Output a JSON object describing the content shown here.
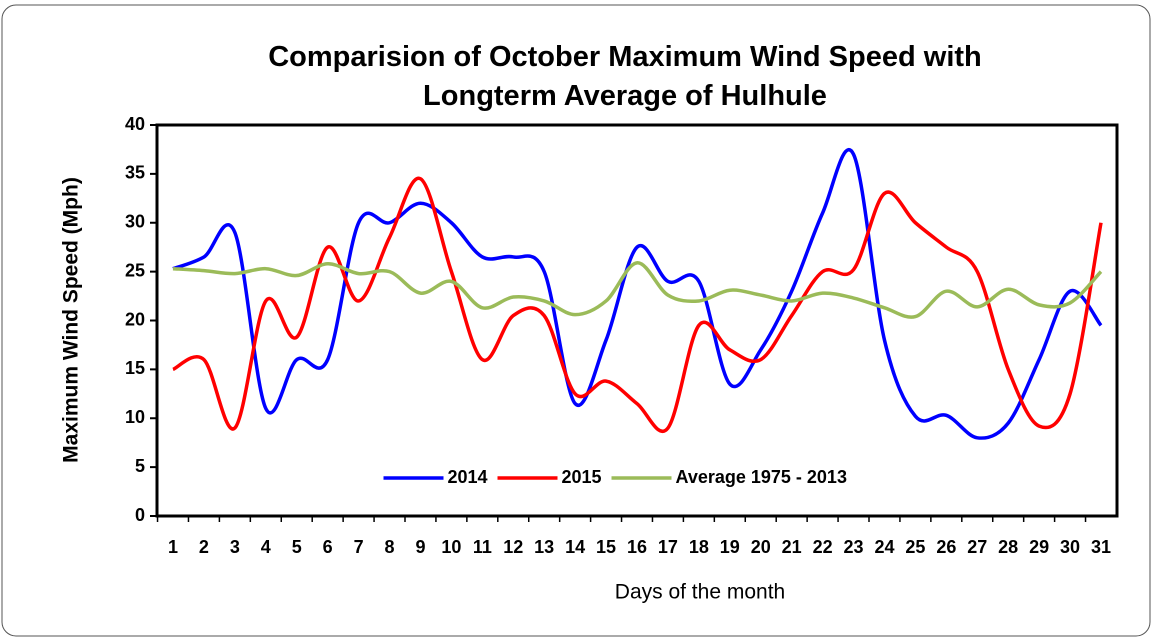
{
  "chart_data": {
    "type": "line",
    "title": "Comparision of October Maximum Wind Speed with Longterm Average of Hulhule",
    "x_label": "Days of the month",
    "y_label": "Maximum Wind Speed (Mph)",
    "categories": [
      "1",
      "2",
      "3",
      "4",
      "5",
      "6",
      "7",
      "8",
      "9",
      "10",
      "11",
      "12",
      "13",
      "14",
      "15",
      "16",
      "17",
      "18",
      "19",
      "20",
      "21",
      "22",
      "23",
      "24",
      "25",
      "26",
      "27",
      "28",
      "29",
      "30",
      "31"
    ],
    "series": [
      {
        "name": "2014",
        "color": "#0000ff",
        "values": [
          25.3,
          26.5,
          29,
          11,
          16,
          16,
          30,
          30,
          32,
          30,
          26.5,
          26.5,
          25,
          11.5,
          18,
          27.5,
          24,
          24,
          13.5,
          17,
          23,
          31,
          37,
          18,
          10.2,
          10.3,
          8,
          9.5,
          16,
          23,
          19.5
        ]
      },
      {
        "name": "2015",
        "color": "#ff0000",
        "values": [
          15,
          16,
          9,
          22,
          18.3,
          27.5,
          22,
          28.5,
          34.5,
          25,
          16,
          20.5,
          20.5,
          12.5,
          13.8,
          11.5,
          9,
          19.5,
          17,
          16,
          20.5,
          25,
          25.2,
          33,
          30,
          27.5,
          25,
          15,
          9.2,
          12.5,
          30
        ]
      },
      {
        "name": "Average 1975 - 2013",
        "color": "#9bbb59",
        "values": [
          25.3,
          25.1,
          24.8,
          25.3,
          24.6,
          25.8,
          24.8,
          25,
          22.8,
          24,
          21.3,
          22.4,
          22,
          20.6,
          22,
          25.9,
          22.6,
          22,
          23.1,
          22.6,
          22,
          22.8,
          22.3,
          21.3,
          20.4,
          23,
          21.4,
          23.2,
          21.6,
          21.8,
          25
        ]
      }
    ],
    "ylim": [
      0,
      40
    ],
    "yticks": [
      0,
      5,
      10,
      15,
      20,
      25,
      30,
      35,
      40
    ],
    "legend": "lower center"
  }
}
